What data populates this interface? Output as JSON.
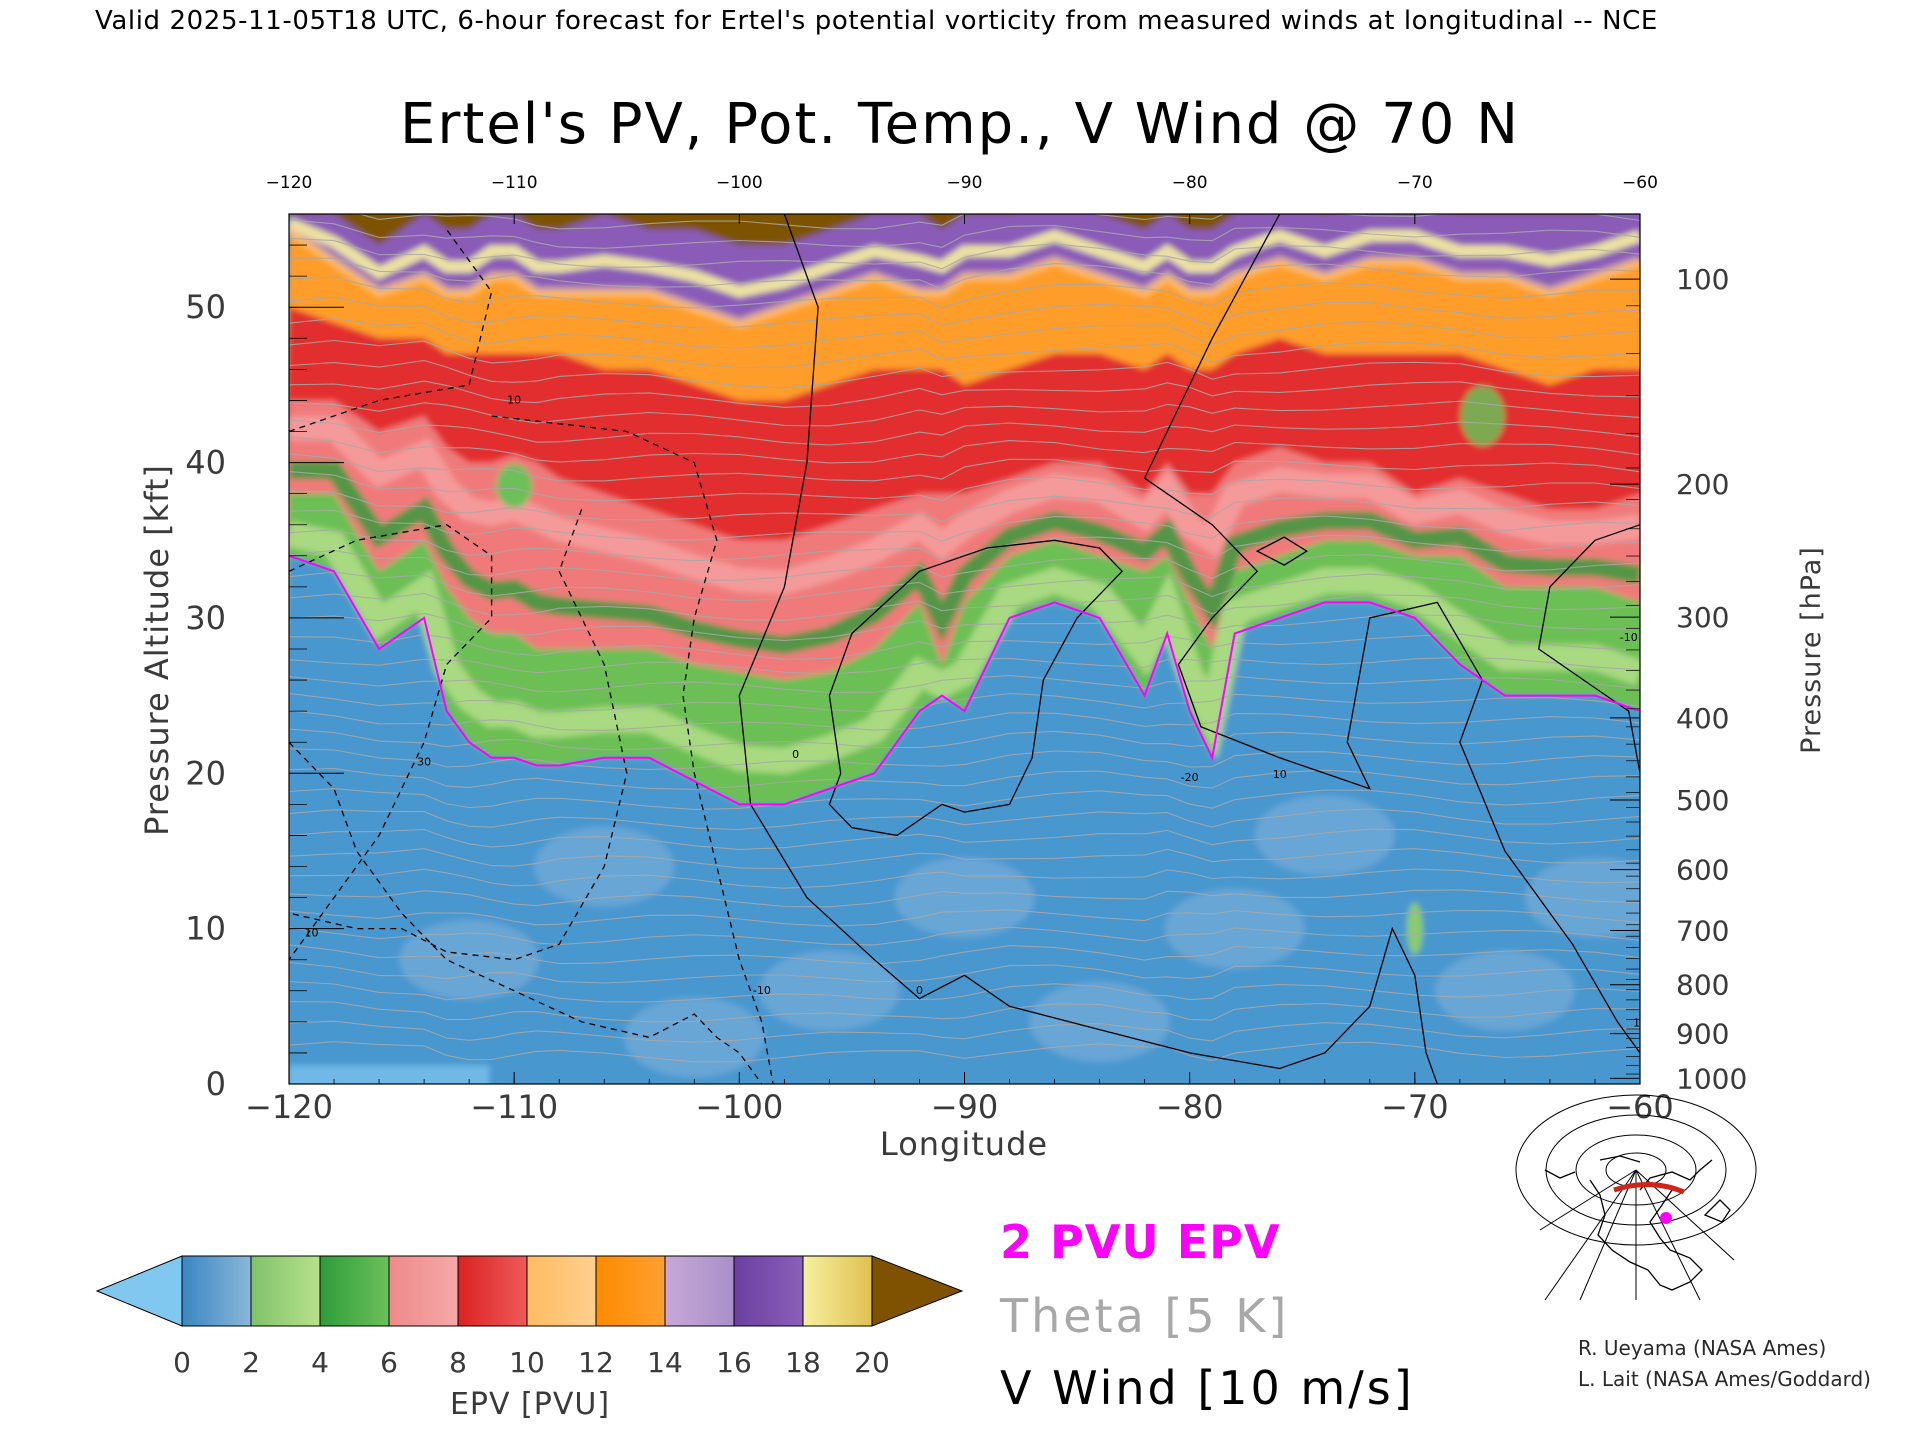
{
  "header": {
    "valid_line": "Valid 2025-11-05T18 UTC, 6-hour forecast for Ertel's potential vorticity from measured winds at longitudinal -- NCE"
  },
  "chart_data": {
    "type": "heatmap",
    "title": "Ertel's PV, Pot. Temp., V Wind @ 70 N",
    "xlabel": "Longitude",
    "ylabel_left": "Pressure Altitude [kft]",
    "ylabel_right": "Pressure [hPa]",
    "xlim": [
      -120,
      -60
    ],
    "ylim_kft": [
      0,
      56
    ],
    "x_ticks": [
      "-120",
      "-110",
      "-100",
      "-90",
      "-80",
      "-70",
      "-60"
    ],
    "x_ticks_top": [
      "-120",
      "-110",
      "-100",
      "-90",
      "-80",
      "-70",
      "-60"
    ],
    "y_ticks_left": [
      "0",
      "10",
      "20",
      "30",
      "40",
      "50"
    ],
    "y_ticks_right": [
      "100",
      "200",
      "300",
      "400",
      "500",
      "600",
      "700",
      "800",
      "900",
      "1000"
    ],
    "colorbar": {
      "label": "EPV [PVU]",
      "ticks": [
        "0",
        "2",
        "4",
        "6",
        "8",
        "10",
        "12",
        "14",
        "16",
        "18",
        "20"
      ],
      "colors": [
        "#80c8f0",
        "#3a86c4",
        "#8ab8d8",
        "#7fc36a",
        "#b9e08c",
        "#2e9c3a",
        "#6cc05a",
        "#ee8a8a",
        "#f7a8a8",
        "#dc2222",
        "#ee5a5a",
        "#ffbb60",
        "#ffd090",
        "#ff8a00",
        "#ffa030",
        "#c8a8d8",
        "#a890c8",
        "#6a3fa0",
        "#8a60b8",
        "#f6f0a0",
        "#e0c050",
        "#7e5200"
      ]
    },
    "epv_top_kft": {
      "x": [
        -120,
        -118,
        -116,
        -114,
        -113,
        -112,
        -111,
        -110,
        -109,
        -108,
        -106,
        -104,
        -102,
        -100,
        -98,
        -96,
        -94,
        -92,
        -91,
        -90,
        -88,
        -86,
        -84,
        -82,
        -81,
        -80,
        -79,
        -78,
        -76,
        -74,
        -72,
        -70,
        -68,
        -66,
        -64,
        -62,
        -60
      ],
      "pv2": [
        34,
        33,
        28,
        30,
        24,
        22,
        21,
        21,
        20.5,
        20.5,
        21,
        21,
        19.5,
        18,
        18,
        19,
        20,
        24,
        25,
        24,
        30,
        31,
        30,
        25,
        29,
        24,
        21,
        29,
        30,
        31,
        31,
        30,
        27,
        25,
        25,
        25,
        24
      ],
      "pv6": [
        38,
        38,
        33,
        35,
        32,
        30,
        29,
        29,
        28,
        28,
        28,
        28,
        27,
        26.5,
        26,
        26.5,
        28,
        31,
        27,
        31,
        34,
        35,
        34,
        33,
        34,
        31,
        28,
        33,
        34,
        35,
        35,
        34,
        34,
        32,
        32,
        32,
        31
      ],
      "pv10": [
        44,
        44,
        42,
        43,
        41,
        40,
        40,
        40.5,
        40,
        39,
        38,
        37,
        36,
        35,
        35,
        36,
        37,
        38,
        38,
        38,
        39,
        40,
        40,
        38,
        40,
        38,
        38,
        40,
        41,
        40,
        40,
        38,
        39,
        38,
        37,
        37,
        38
      ],
      "pv13": [
        50,
        49,
        48,
        48,
        47,
        47,
        47,
        47,
        47,
        47,
        46,
        46,
        45,
        44,
        44,
        45,
        46,
        46,
        46,
        45,
        46,
        47,
        47,
        46,
        47,
        46,
        46,
        47,
        48,
        47,
        47,
        47,
        47,
        46,
        45,
        46,
        46
      ],
      "pv16": [
        55,
        53,
        51,
        52,
        51,
        51,
        52,
        52,
        51,
        51,
        51,
        51,
        50,
        49,
        50,
        51,
        52,
        51,
        51,
        52,
        52,
        53,
        52,
        51,
        52,
        51,
        51,
        52,
        53,
        52,
        53,
        53,
        52,
        52,
        51,
        52,
        53
      ],
      "pv20": [
        56,
        56,
        54,
        56,
        55,
        55,
        56,
        56,
        55,
        55,
        56,
        55,
        55,
        54,
        54,
        55,
        56,
        56,
        55,
        56,
        56,
        57,
        56,
        55,
        56,
        55,
        55,
        56,
        57,
        56,
        57,
        57,
        56,
        56,
        56,
        56,
        57
      ]
    },
    "annotations": [
      "10",
      "30",
      "10",
      "0",
      "0",
      "-10",
      "-20",
      "-10",
      "10",
      "10"
    ]
  },
  "legend": {
    "pv_line": "2 PVU EPV",
    "theta": "Theta [5 K]",
    "vwind": "V Wind [10 m/s]",
    "pv_color": "#ff00ff",
    "theta_color": "#a8a8a8"
  },
  "credits": {
    "line1": "R. Ueyama (NASA Ames)",
    "line2": "L. Lait (NASA Ames/Goddard)"
  }
}
